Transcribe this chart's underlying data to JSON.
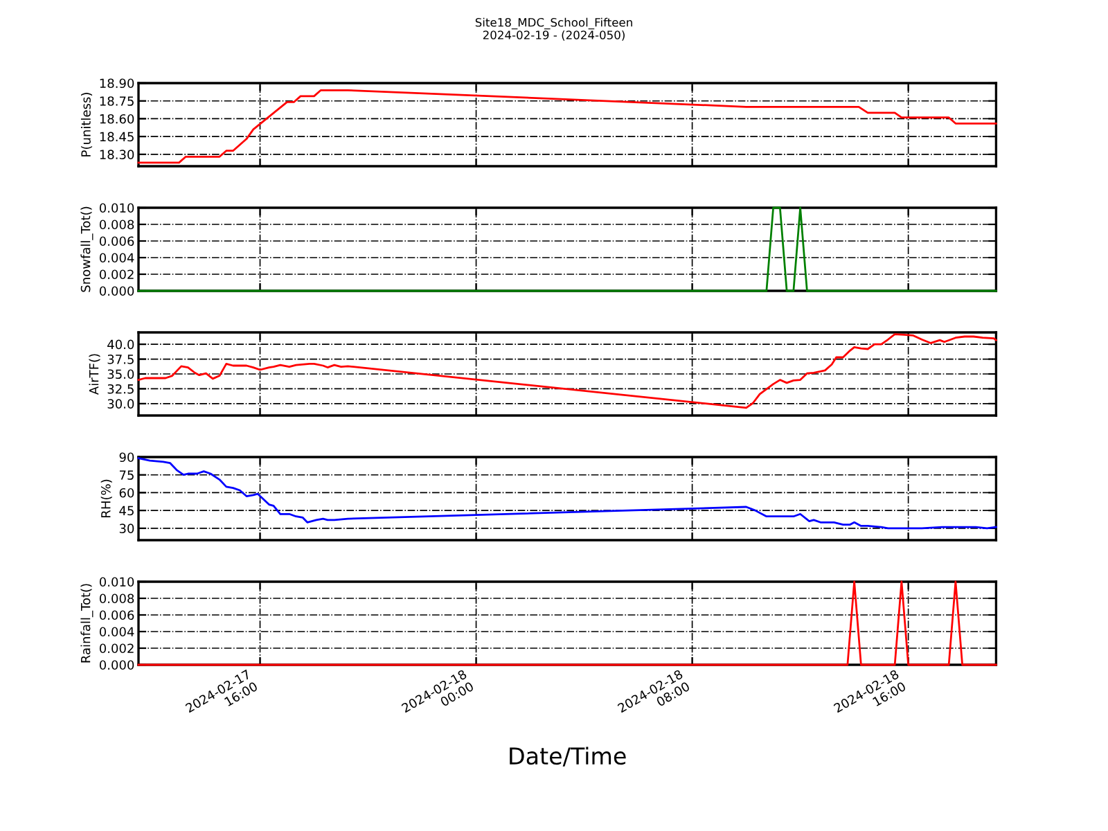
{
  "chart_data": [
    {
      "type": "line",
      "title": "Site18_MDC_School_Fifteen",
      "subtitle": "2024-02-19 - (2024-050)",
      "ylabel": "P(unitless)",
      "grid": true,
      "tick_labels": "y",
      "xlim": [
        "2024-02-17T11:30",
        "2024-02-18T19:15"
      ],
      "xticks": [
        {
          "value": "2024-02-17T16:00",
          "label": null
        },
        {
          "value": "2024-02-18T00:00",
          "label": null
        },
        {
          "value": "2024-02-18T08:00",
          "label": null
        },
        {
          "value": "2024-02-18T16:00",
          "label": null
        }
      ],
      "ylim": [
        18.2,
        18.9
      ],
      "yticks": [
        {
          "value": 18.3,
          "label": "18.30"
        },
        {
          "value": 18.45,
          "label": "18.45"
        },
        {
          "value": 18.6,
          "label": "18.60"
        },
        {
          "value": 18.75,
          "label": "18.75"
        },
        {
          "value": 18.9,
          "label": "18.90"
        }
      ],
      "x": [
        "2024-02-17T11:30",
        "2024-02-17T13:00",
        "2024-02-17T13:15",
        "2024-02-17T14:30",
        "2024-02-17T14:45",
        "2024-02-17T15:00",
        "2024-02-17T15:30",
        "2024-02-17T15:45",
        "2024-02-17T17:00",
        "2024-02-17T17:15",
        "2024-02-17T17:30",
        "2024-02-17T18:00",
        "2024-02-17T18:15",
        "2024-02-17T19:15",
        "2024-02-18T10:00",
        "2024-02-18T14:10",
        "2024-02-18T14:30",
        "2024-02-18T15:30",
        "2024-02-18T15:45",
        "2024-02-18T17:30",
        "2024-02-18T17:45",
        "2024-02-18T19:15"
      ],
      "series": [
        {
          "color": "#ff0000",
          "values": [
            18.23,
            18.23,
            18.28,
            18.28,
            18.33,
            18.33,
            18.43,
            18.51,
            18.74,
            18.74,
            18.79,
            18.79,
            18.84,
            18.84,
            18.7,
            18.7,
            18.65,
            18.65,
            18.61,
            18.61,
            18.56,
            18.56
          ]
        }
      ]
    },
    {
      "type": "line",
      "ylabel": "Snowfall_Tot()",
      "grid": true,
      "tick_labels": "y",
      "xlim": [
        "2024-02-17T11:30",
        "2024-02-18T19:15"
      ],
      "xticks": [
        {
          "value": "2024-02-17T16:00",
          "label": null
        },
        {
          "value": "2024-02-18T00:00",
          "label": null
        },
        {
          "value": "2024-02-18T08:00",
          "label": null
        },
        {
          "value": "2024-02-18T16:00",
          "label": null
        }
      ],
      "ylim": [
        0,
        0.01
      ],
      "yticks": [
        {
          "value": 0,
          "label": "0.000"
        },
        {
          "value": 0.002,
          "label": "0.002"
        },
        {
          "value": 0.004,
          "label": "0.004"
        },
        {
          "value": 0.006,
          "label": "0.006"
        },
        {
          "value": 0.008,
          "label": "0.008"
        },
        {
          "value": 0.01,
          "label": "0.010"
        }
      ],
      "x": [
        "2024-02-17T11:30",
        "2024-02-17T19:15",
        "2024-02-18T10:00",
        "2024-02-18T10:45",
        "2024-02-18T11:00",
        "2024-02-18T11:15",
        "2024-02-18T11:30",
        "2024-02-18T11:45",
        "2024-02-18T12:00",
        "2024-02-18T12:15",
        "2024-02-18T19:15"
      ],
      "series": [
        {
          "color": "#008000",
          "values": [
            0,
            0,
            0,
            0,
            0.01,
            0.01,
            0,
            0,
            0.01,
            0,
            0
          ]
        }
      ]
    },
    {
      "type": "line",
      "ylabel": "AirTF()",
      "grid": true,
      "tick_labels": "y",
      "xlim": [
        "2024-02-17T11:30",
        "2024-02-18T19:15"
      ],
      "xticks": [
        {
          "value": "2024-02-17T16:00",
          "label": null
        },
        {
          "value": "2024-02-18T00:00",
          "label": null
        },
        {
          "value": "2024-02-18T08:00",
          "label": null
        },
        {
          "value": "2024-02-18T16:00",
          "label": null
        }
      ],
      "ylim": [
        28,
        42
      ],
      "yticks": [
        {
          "value": 30,
          "label": "30.0"
        },
        {
          "value": 32.5,
          "label": "32.5"
        },
        {
          "value": 35,
          "label": "35.0"
        },
        {
          "value": 37.5,
          "label": "37.5"
        },
        {
          "value": 40,
          "label": "40.0"
        }
      ],
      "x": [
        "2024-02-17T11:30",
        "2024-02-17T11:45",
        "2024-02-17T12:30",
        "2024-02-17T12:45",
        "2024-02-17T13:05",
        "2024-02-17T13:20",
        "2024-02-17T13:35",
        "2024-02-17T13:45",
        "2024-02-17T14:00",
        "2024-02-17T14:15",
        "2024-02-17T14:30",
        "2024-02-17T14:45",
        "2024-02-17T15:00",
        "2024-02-17T15:30",
        "2024-02-17T15:45",
        "2024-02-17T16:00",
        "2024-02-17T16:20",
        "2024-02-17T16:30",
        "2024-02-17T16:45",
        "2024-02-17T17:05",
        "2024-02-17T17:20",
        "2024-02-17T17:50",
        "2024-02-17T18:00",
        "2024-02-17T18:20",
        "2024-02-17T18:30",
        "2024-02-17T18:45",
        "2024-02-17T19:00",
        "2024-02-17T19:15",
        "2024-02-18T10:00",
        "2024-02-18T10:15",
        "2024-02-18T10:30",
        "2024-02-18T11:00",
        "2024-02-18T11:15",
        "2024-02-18T11:30",
        "2024-02-18T11:45",
        "2024-02-18T12:00",
        "2024-02-18T12:15",
        "2024-02-18T12:30",
        "2024-02-18T12:55",
        "2024-02-18T13:10",
        "2024-02-18T13:20",
        "2024-02-18T13:35",
        "2024-02-18T13:50",
        "2024-02-18T14:00",
        "2024-02-18T14:15",
        "2024-02-18T14:30",
        "2024-02-18T14:45",
        "2024-02-18T15:00",
        "2024-02-18T15:15",
        "2024-02-18T15:30",
        "2024-02-18T15:50",
        "2024-02-18T16:10",
        "2024-02-18T16:30",
        "2024-02-18T16:50",
        "2024-02-18T17:10",
        "2024-02-18T17:20",
        "2024-02-18T17:45",
        "2024-02-18T18:05",
        "2024-02-18T18:25",
        "2024-02-18T18:45",
        "2024-02-18T19:10",
        "2024-02-18T19:15"
      ],
      "series": [
        {
          "color": "#ff0000",
          "values": [
            34.0,
            34.3,
            34.3,
            34.7,
            36.3,
            36.1,
            35.2,
            34.8,
            35.1,
            34.2,
            34.7,
            36.7,
            36.4,
            36.4,
            36.1,
            35.7,
            36.1,
            36.2,
            36.5,
            36.2,
            36.5,
            36.7,
            36.7,
            36.4,
            36.1,
            36.5,
            36.2,
            36.3,
            29.3,
            30.1,
            31.6,
            33.3,
            34.0,
            33.5,
            33.9,
            34.0,
            35.1,
            35.2,
            35.6,
            36.6,
            37.8,
            37.8,
            38.9,
            39.5,
            39.3,
            39.2,
            40.0,
            40.0,
            40.8,
            41.7,
            41.6,
            41.5,
            40.8,
            40.2,
            40.7,
            40.4,
            41.1,
            41.3,
            41.3,
            41.1,
            41.0,
            40.7
          ]
        }
      ]
    },
    {
      "type": "line",
      "ylabel": "RH(%)",
      "grid": true,
      "tick_labels": "y",
      "xlim": [
        "2024-02-17T11:30",
        "2024-02-18T19:15"
      ],
      "xticks": [
        {
          "value": "2024-02-17T16:00",
          "label": null
        },
        {
          "value": "2024-02-18T00:00",
          "label": null
        },
        {
          "value": "2024-02-18T08:00",
          "label": null
        },
        {
          "value": "2024-02-18T16:00",
          "label": null
        }
      ],
      "ylim": [
        20,
        90
      ],
      "yticks": [
        30,
        45,
        60,
        75,
        90
      ],
      "x": [
        "2024-02-17T11:30",
        "2024-02-17T11:55",
        "2024-02-17T12:25",
        "2024-02-17T12:40",
        "2024-02-17T12:55",
        "2024-02-17T13:10",
        "2024-02-17T13:20",
        "2024-02-17T13:40",
        "2024-02-17T13:55",
        "2024-02-17T14:10",
        "2024-02-17T14:30",
        "2024-02-17T14:45",
        "2024-02-17T15:00",
        "2024-02-17T15:15",
        "2024-02-17T15:30",
        "2024-02-17T15:45",
        "2024-02-17T15:55",
        "2024-02-17T16:20",
        "2024-02-17T16:30",
        "2024-02-17T16:45",
        "2024-02-17T17:05",
        "2024-02-17T17:20",
        "2024-02-17T17:35",
        "2024-02-17T17:45",
        "2024-02-17T18:05",
        "2024-02-17T18:20",
        "2024-02-17T18:30",
        "2024-02-17T18:45",
        "2024-02-17T19:15",
        "2024-02-18T10:00",
        "2024-02-18T10:20",
        "2024-02-18T10:45",
        "2024-02-18T11:00",
        "2024-02-18T11:45",
        "2024-02-18T12:00",
        "2024-02-18T12:20",
        "2024-02-18T12:30",
        "2024-02-18T12:45",
        "2024-02-18T13:15",
        "2024-02-18T13:35",
        "2024-02-18T13:50",
        "2024-02-18T14:00",
        "2024-02-18T14:15",
        "2024-02-18T14:30",
        "2024-02-18T15:00",
        "2024-02-18T15:15",
        "2024-02-18T15:45",
        "2024-02-18T16:10",
        "2024-02-18T16:30",
        "2024-02-18T17:15",
        "2024-02-18T18:05",
        "2024-02-18T18:30",
        "2024-02-18T18:55",
        "2024-02-18T19:15"
      ],
      "series": [
        {
          "color": "#0000ff",
          "values": [
            89,
            87,
            86,
            85,
            79,
            75,
            76,
            76,
            78,
            76,
            71,
            65,
            64,
            62,
            57,
            58,
            59,
            50,
            49,
            42,
            42,
            40,
            39,
            35,
            37,
            38,
            37,
            37,
            38,
            48,
            45,
            40,
            40,
            40,
            42,
            36,
            37,
            35,
            35,
            33,
            33,
            35,
            32,
            32,
            31,
            30,
            30,
            30,
            30,
            31,
            31,
            31,
            30,
            31
          ]
        }
      ]
    },
    {
      "type": "line",
      "ylabel": "Rainfall_Tot()",
      "xlabel": "Date/Time",
      "grid": true,
      "xlim": [
        "2024-02-17T11:30",
        "2024-02-18T19:15"
      ],
      "xticks": [
        {
          "value": "2024-02-17T16:00",
          "label": "2024-02-17\n16:00"
        },
        {
          "value": "2024-02-18T00:00",
          "label": "2024-02-18\n00:00"
        },
        {
          "value": "2024-02-18T08:00",
          "label": "2024-02-18\n08:00"
        },
        {
          "value": "2024-02-18T16:00",
          "label": "2024-02-18\n16:00"
        }
      ],
      "ylim": [
        0,
        0.01
      ],
      "yticks": [
        {
          "value": 0,
          "label": "0.000"
        },
        {
          "value": 0.002,
          "label": "0.002"
        },
        {
          "value": 0.004,
          "label": "0.004"
        },
        {
          "value": 0.006,
          "label": "0.006"
        },
        {
          "value": 0.008,
          "label": "0.008"
        },
        {
          "value": 0.01,
          "label": "0.010"
        }
      ],
      "x": [
        "2024-02-17T11:30",
        "2024-02-18T13:45",
        "2024-02-18T14:00",
        "2024-02-18T14:15",
        "2024-02-18T15:30",
        "2024-02-18T15:45",
        "2024-02-18T16:00",
        "2024-02-18T17:30",
        "2024-02-18T17:45",
        "2024-02-18T18:00",
        "2024-02-18T19:15"
      ],
      "series": [
        {
          "color": "#ff0000",
          "values": [
            0,
            0,
            0.01,
            0,
            0,
            0.01,
            0,
            0,
            0.01,
            0,
            0
          ]
        }
      ]
    }
  ]
}
